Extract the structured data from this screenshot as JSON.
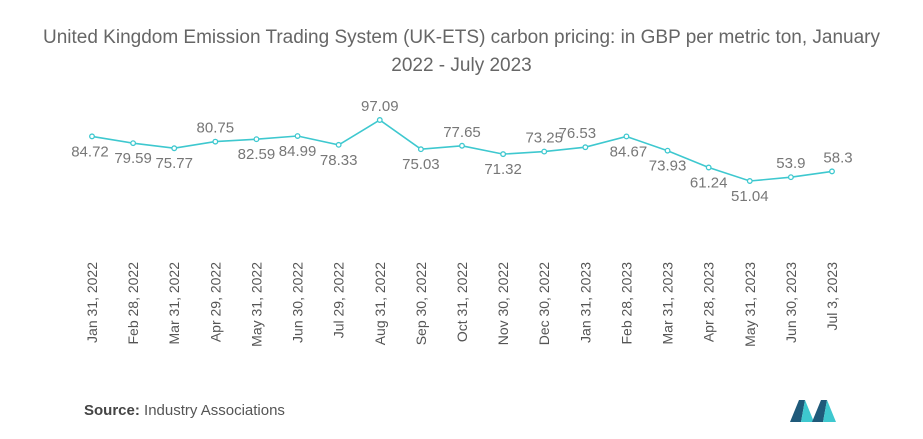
{
  "title": "United Kingdom Emission Trading System (UK-ETS) carbon pricing: in GBP per metric ton, January 2022 - July 2023",
  "source_label": "Source:",
  "source_text": "Industry Associations",
  "colors": {
    "line": "#3ec8cf",
    "labels": "#777777",
    "logo_dark": "#1f5a7a",
    "logo_light": "#3ec8cf"
  },
  "chart_data": {
    "type": "line",
    "title": "United Kingdom Emission Trading System (UK-ETS) carbon pricing: in GBP per metric ton, January 2022 - July 2023",
    "xlabel": "",
    "ylabel": "",
    "ylim": [
      40,
      100
    ],
    "grid": false,
    "legend": "none",
    "categories": [
      "Jan 31, 2022",
      "Feb 28, 2022",
      "Mar 31, 2022",
      "Apr 29, 2022",
      "May 31, 2022",
      "Jun 30, 2022",
      "Jul 29, 2022",
      "Aug 31, 2022",
      "Sep 30, 2022",
      "Oct 31, 2022",
      "Nov 30, 2022",
      "Dec 30, 2022",
      "Jan 31, 2023",
      "Feb 28, 2023",
      "Mar 31, 2023",
      "Apr 28, 2023",
      "May 31, 2023",
      "Jun 30, 2023",
      "Jul 3, 2023"
    ],
    "values": [
      84.72,
      79.59,
      75.77,
      80.75,
      82.59,
      84.99,
      78.33,
      97.09,
      75.03,
      77.65,
      71.32,
      73.25,
      76.53,
      84.67,
      73.93,
      61.24,
      51.04,
      53.9,
      58.3
    ],
    "value_labels": [
      "84.72",
      "79.59",
      "75.77",
      "80.75",
      "82.59",
      "84.99",
      "78.33",
      "97.09",
      "75.03",
      "77.65",
      "71.32",
      "73.25",
      "76.53",
      "84.67",
      "73.93",
      "61.24",
      "51.04",
      "53.9",
      "58.3"
    ]
  }
}
